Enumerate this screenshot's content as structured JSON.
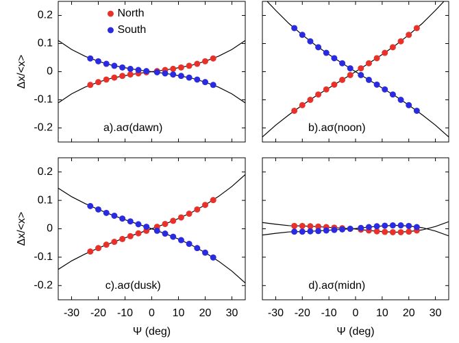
{
  "chart_data": [
    {
      "type": "scatter",
      "panel_label": "a).aσ(dawn)",
      "ylabel": "Δx/<x>",
      "legend": "upper center",
      "xlim": [
        -35,
        35
      ],
      "ylim": [
        -0.25,
        0.25
      ],
      "xticks": [
        -30,
        -20,
        -10,
        0,
        10,
        20,
        30
      ],
      "yticks": [
        -0.2,
        -0.1,
        0,
        0.1,
        0.2
      ],
      "xtick_labels": false,
      "ytick_labels": true,
      "x": [
        -23,
        -20,
        -17,
        -14,
        -11,
        -8,
        -5,
        -2,
        2,
        5,
        8,
        11,
        14,
        17,
        20,
        23
      ],
      "series": [
        {
          "name": "North",
          "color": "#e8312a",
          "values": [
            -0.047,
            -0.037,
            -0.028,
            -0.021,
            -0.015,
            -0.01,
            -0.006,
            -0.002,
            0.002,
            0.006,
            0.01,
            0.015,
            0.021,
            0.028,
            0.037,
            0.047
          ]
        },
        {
          "name": "South",
          "color": "#2a2ae0",
          "values": [
            0.047,
            0.037,
            0.028,
            0.021,
            0.015,
            0.01,
            0.006,
            0.002,
            -0.002,
            -0.006,
            -0.01,
            -0.015,
            -0.021,
            -0.028,
            -0.037,
            -0.047
          ]
        }
      ],
      "fit_x": [
        -35,
        -30,
        -25,
        -20,
        -15,
        -10,
        -5,
        0,
        5,
        10,
        15,
        20,
        25,
        30,
        35
      ],
      "fits": [
        {
          "color": "#000000",
          "values": [
            -0.111,
            -0.079,
            -0.055,
            -0.037,
            -0.023,
            -0.014,
            -0.006,
            0,
            0.006,
            0.014,
            0.023,
            0.037,
            0.055,
            0.079,
            0.111
          ]
        },
        {
          "color": "#000000",
          "values": [
            0.111,
            0.079,
            0.055,
            0.037,
            0.023,
            0.014,
            0.006,
            0,
            -0.006,
            -0.014,
            -0.023,
            -0.037,
            -0.055,
            -0.079,
            -0.111
          ]
        }
      ]
    },
    {
      "type": "scatter",
      "panel_label": "b).aσ(noon)",
      "xlim": [
        -35,
        35
      ],
      "ylim": [
        -0.25,
        0.25
      ],
      "xticks": [
        -30,
        -20,
        -10,
        0,
        10,
        20,
        30
      ],
      "yticks": [
        -0.2,
        -0.1,
        0,
        0.1,
        0.2
      ],
      "xtick_labels": false,
      "ytick_labels": false,
      "x": [
        -23,
        -20,
        -17,
        -14,
        -11,
        -8,
        -5,
        -2,
        2,
        5,
        8,
        11,
        14,
        17,
        20,
        23
      ],
      "series": [
        {
          "color": "#e8312a",
          "values": [
            -0.139,
            -0.119,
            -0.1,
            -0.081,
            -0.063,
            -0.046,
            -0.029,
            -0.012,
            0.012,
            0.03,
            0.048,
            0.067,
            0.087,
            0.108,
            0.131,
            0.155
          ]
        },
        {
          "color": "#2a2ae0",
          "values": [
            0.155,
            0.131,
            0.108,
            0.087,
            0.067,
            0.048,
            0.03,
            0.012,
            -0.012,
            -0.029,
            -0.046,
            -0.063,
            -0.081,
            -0.1,
            -0.119,
            -0.139
          ]
        }
      ],
      "fit_x": [
        -35,
        -30,
        -25,
        -20,
        -15,
        -10,
        -5,
        0,
        5,
        10,
        15,
        20,
        25,
        30,
        35
      ],
      "fits": [
        {
          "color": "#000000",
          "values": [
            -0.232,
            -0.19,
            -0.153,
            -0.119,
            -0.087,
            -0.058,
            -0.029,
            0,
            0.03,
            0.061,
            0.094,
            0.131,
            0.171,
            0.218,
            0.268
          ]
        },
        {
          "color": "#000000",
          "values": [
            0.268,
            0.218,
            0.171,
            0.131,
            0.094,
            0.061,
            0.03,
            0,
            -0.029,
            -0.058,
            -0.087,
            -0.119,
            -0.153,
            -0.19,
            -0.232
          ]
        }
      ]
    },
    {
      "type": "scatter",
      "panel_label": "c).aσ(dusk)",
      "ylabel": "Δx/<x>",
      "xlabel": "Ψ (deg)",
      "xlim": [
        -35,
        35
      ],
      "ylim": [
        -0.25,
        0.25
      ],
      "xticks": [
        -30,
        -20,
        -10,
        0,
        10,
        20,
        30
      ],
      "yticks": [
        -0.2,
        -0.1,
        0,
        0.1,
        0.2
      ],
      "xtick_labels": true,
      "ytick_labels": true,
      "x": [
        -23,
        -20,
        -17,
        -14,
        -11,
        -8,
        -5,
        -2,
        2,
        5,
        8,
        11,
        14,
        17,
        20,
        23
      ],
      "series": [
        {
          "color": "#e8312a",
          "values": [
            -0.08,
            -0.068,
            -0.056,
            -0.046,
            -0.036,
            -0.026,
            -0.016,
            -0.007,
            0.007,
            0.017,
            0.028,
            0.04,
            0.053,
            0.068,
            0.084,
            0.101
          ]
        },
        {
          "color": "#2a2ae0",
          "values": [
            0.08,
            0.068,
            0.056,
            0.046,
            0.036,
            0.026,
            0.016,
            0.007,
            -0.007,
            -0.017,
            -0.028,
            -0.04,
            -0.053,
            -0.068,
            -0.084,
            -0.101
          ]
        }
      ],
      "fit_x": [
        -35,
        -30,
        -25,
        -20,
        -15,
        -10,
        -5,
        0,
        5,
        10,
        15,
        20,
        25,
        30,
        35
      ],
      "fits": [
        {
          "color": "#000000",
          "values": [
            -0.143,
            -0.113,
            -0.089,
            -0.068,
            -0.049,
            -0.032,
            -0.016,
            0,
            0.017,
            0.036,
            0.058,
            0.084,
            0.114,
            0.149,
            0.191
          ]
        },
        {
          "color": "#000000",
          "values": [
            0.143,
            0.113,
            0.089,
            0.068,
            0.049,
            0.032,
            0.016,
            0,
            -0.017,
            -0.036,
            -0.058,
            -0.084,
            -0.114,
            -0.149,
            -0.191
          ]
        }
      ]
    },
    {
      "type": "scatter",
      "panel_label": "d).aσ(midn)",
      "xlabel": "Ψ (deg)",
      "xlim": [
        -35,
        35
      ],
      "ylim": [
        -0.25,
        0.25
      ],
      "xticks": [
        -30,
        -20,
        -10,
        0,
        10,
        20,
        30
      ],
      "yticks": [
        -0.2,
        -0.1,
        0,
        0.1,
        0.2
      ],
      "xtick_labels": true,
      "ytick_labels": false,
      "x": [
        -23,
        -20,
        -17,
        -14,
        -11,
        -8,
        -5,
        -2,
        2,
        5,
        8,
        11,
        14,
        17,
        20,
        23
      ],
      "series": [
        {
          "color": "#e8312a",
          "values": [
            0.01,
            0.01,
            0.009,
            0.008,
            0.006,
            0.004,
            0.002,
            0.0,
            -0.003,
            -0.006,
            -0.009,
            -0.011,
            -0.012,
            -0.012,
            -0.01,
            -0.006
          ]
        },
        {
          "color": "#2a2ae0",
          "values": [
            -0.01,
            -0.01,
            -0.009,
            -0.008,
            -0.006,
            -0.004,
            -0.002,
            0.0,
            0.003,
            0.006,
            0.009,
            0.011,
            0.012,
            0.012,
            0.01,
            0.006
          ]
        }
      ],
      "fit_x": [
        -35,
        -30,
        -25,
        -20,
        -15,
        -10,
        -5,
        0,
        5,
        10,
        15,
        20,
        25,
        30,
        35
      ],
      "fits": [
        {
          "color": "#000000",
          "values": [
            0.022,
            0.016,
            0.011,
            0.01,
            0.008,
            0.005,
            0.002,
            -0.001,
            -0.006,
            -0.01,
            -0.012,
            -0.01,
            -0.004,
            0.008,
            0.025
          ]
        },
        {
          "color": "#000000",
          "values": [
            -0.022,
            -0.016,
            -0.011,
            -0.01,
            -0.008,
            -0.005,
            -0.002,
            0.001,
            0.006,
            0.01,
            0.012,
            0.01,
            0.004,
            -0.008,
            -0.025
          ]
        }
      ]
    }
  ]
}
